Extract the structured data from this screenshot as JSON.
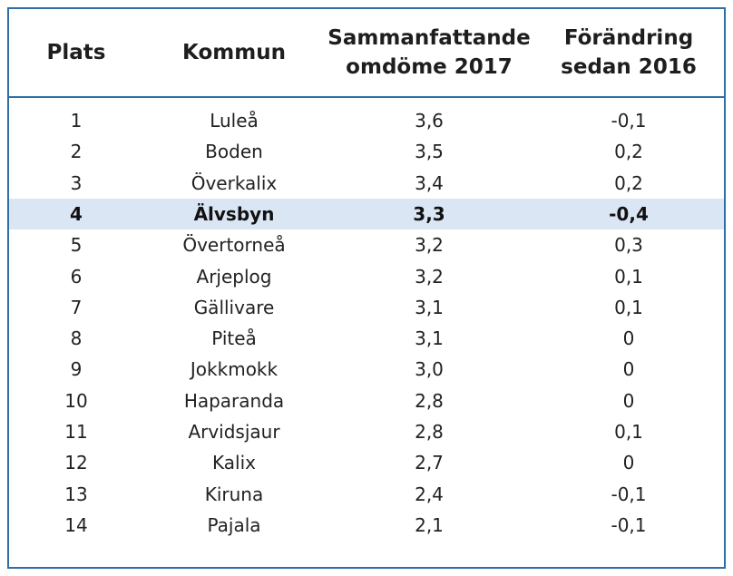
{
  "table": {
    "headers": {
      "rank": "Plats",
      "municipality": "Kommun",
      "rating_line1": "Sammanfattande",
      "rating_line2": "omdöme 2017",
      "change_line1": "Förändring",
      "change_line2": "sedan 2016"
    },
    "highlight_color": "#dbe6f4",
    "border_color": "#2f6fa8",
    "rows": [
      {
        "rank": "1",
        "municipality": "Luleå",
        "rating": "3,6",
        "change": "-0,1",
        "highlight": false
      },
      {
        "rank": "2",
        "municipality": "Boden",
        "rating": "3,5",
        "change": "0,2",
        "highlight": false
      },
      {
        "rank": "3",
        "municipality": "Överkalix",
        "rating": "3,4",
        "change": "0,2",
        "highlight": false
      },
      {
        "rank": "4",
        "municipality": "Älvsbyn",
        "rating": "3,3",
        "change": "-0,4",
        "highlight": true
      },
      {
        "rank": "5",
        "municipality": "Övertorneå",
        "rating": "3,2",
        "change": "0,3",
        "highlight": false
      },
      {
        "rank": "6",
        "municipality": "Arjeplog",
        "rating": "3,2",
        "change": "0,1",
        "highlight": false
      },
      {
        "rank": "7",
        "municipality": "Gällivare",
        "rating": "3,1",
        "change": "0,1",
        "highlight": false
      },
      {
        "rank": "8",
        "municipality": "Piteå",
        "rating": "3,1",
        "change": "0",
        "highlight": false
      },
      {
        "rank": "9",
        "municipality": "Jokkmokk",
        "rating": "3,0",
        "change": "0",
        "highlight": false
      },
      {
        "rank": "10",
        "municipality": "Haparanda",
        "rating": "2,8",
        "change": "0",
        "highlight": false
      },
      {
        "rank": "11",
        "municipality": "Arvidsjaur",
        "rating": "2,8",
        "change": "0,1",
        "highlight": false
      },
      {
        "rank": "12",
        "municipality": "Kalix",
        "rating": "2,7",
        "change": "0",
        "highlight": false
      },
      {
        "rank": "13",
        "municipality": "Kiruna",
        "rating": "2,4",
        "change": "-0,1",
        "highlight": false
      },
      {
        "rank": "14",
        "municipality": "Pajala",
        "rating": "2,1",
        "change": "-0,1",
        "highlight": false
      }
    ]
  }
}
